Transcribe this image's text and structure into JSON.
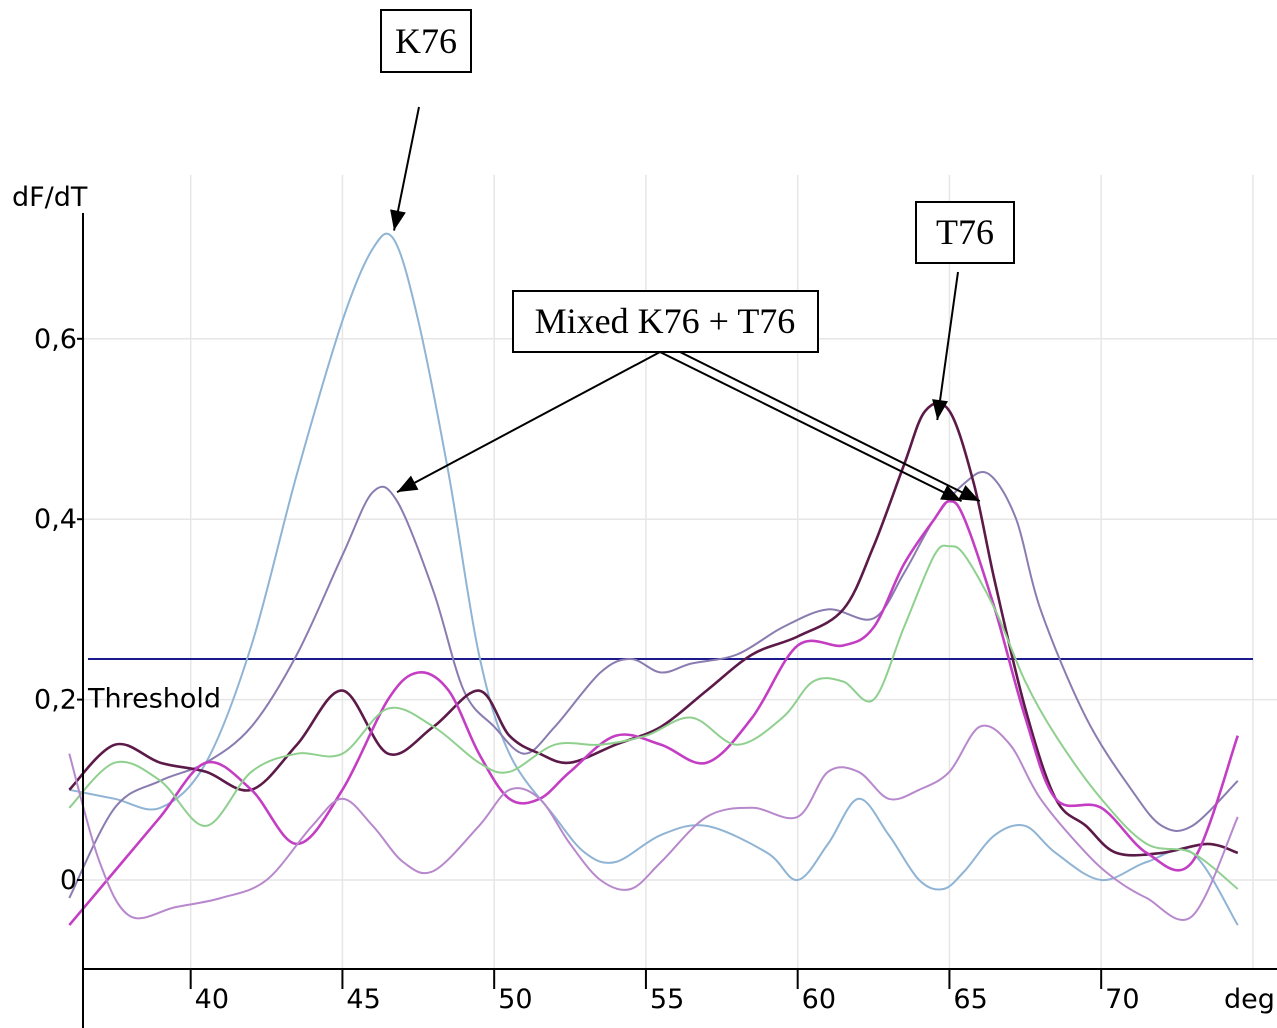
{
  "chart_data": {
    "type": "line",
    "ylabel": "dF/dT",
    "xlabel": "deg.",
    "xlim": [
      35.2,
      75.0
    ],
    "ylim": [
      -0.1,
      0.72
    ],
    "x_ticks": [
      40,
      45,
      50,
      55,
      60,
      65,
      70
    ],
    "x_tick_labels": [
      "40",
      "45",
      "50",
      "55",
      "60",
      "65",
      "70"
    ],
    "y_ticks": [
      0,
      0.2,
      0.4,
      0.6
    ],
    "y_tick_labels": [
      "0",
      "0,2",
      "0,4",
      "0,6"
    ],
    "grid": true,
    "threshold": {
      "label": "Threshold",
      "value": 0.245,
      "color": "#1a1a8c"
    },
    "series": [
      {
        "color": "#8fb4d4",
        "x": [
          36.0,
          37.5,
          39.0,
          40.5,
          42.0,
          43.5,
          45.0,
          46.0,
          46.7,
          47.5,
          48.5,
          49.5,
          50.5,
          52.0,
          53.0,
          54.0,
          55.5,
          57.0,
          59.0,
          60.0,
          61.0,
          62.0,
          63.0,
          64.0,
          64.8,
          65.5,
          66.5,
          67.5,
          68.5,
          70.0,
          71.5,
          73.0,
          74.5
        ],
        "values": [
          0.1,
          0.09,
          0.08,
          0.13,
          0.26,
          0.45,
          0.62,
          0.7,
          0.71,
          0.62,
          0.45,
          0.25,
          0.14,
          0.07,
          0.03,
          0.02,
          0.05,
          0.06,
          0.03,
          0.0,
          0.04,
          0.09,
          0.05,
          0.0,
          -0.01,
          0.01,
          0.05,
          0.06,
          0.03,
          0.0,
          0.02,
          0.03,
          -0.05
        ]
      },
      {
        "color": "#8a7cb0",
        "x": [
          36.0,
          37.5,
          39.0,
          40.5,
          42.0,
          43.5,
          45.0,
          46.0,
          46.8,
          48.0,
          49.0,
          50.0,
          51.0,
          52.0,
          53.5,
          54.5,
          55.5,
          56.5,
          58.0,
          59.5,
          61.0,
          62.5,
          63.5,
          64.5,
          65.5,
          66.3,
          67.2,
          68.0,
          69.5,
          71.0,
          72.0,
          73.0,
          74.5
        ],
        "values": [
          -0.02,
          0.08,
          0.11,
          0.13,
          0.17,
          0.25,
          0.36,
          0.43,
          0.42,
          0.32,
          0.21,
          0.17,
          0.14,
          0.17,
          0.23,
          0.245,
          0.23,
          0.24,
          0.25,
          0.28,
          0.3,
          0.29,
          0.34,
          0.4,
          0.44,
          0.45,
          0.4,
          0.3,
          0.18,
          0.1,
          0.06,
          0.06,
          0.11
        ]
      },
      {
        "color": "#5c1a48",
        "x": [
          36.0,
          37.5,
          39.0,
          40.5,
          42.0,
          43.5,
          45.0,
          46.5,
          48.0,
          49.5,
          50.5,
          51.5,
          52.5,
          54.0,
          55.5,
          57.0,
          58.5,
          60.0,
          61.5,
          62.5,
          63.5,
          64.2,
          65.0,
          65.8,
          66.5,
          67.5,
          68.5,
          69.5,
          70.5,
          72.0,
          73.5,
          74.5
        ],
        "values": [
          0.1,
          0.15,
          0.13,
          0.12,
          0.1,
          0.15,
          0.21,
          0.14,
          0.17,
          0.21,
          0.16,
          0.14,
          0.13,
          0.15,
          0.17,
          0.21,
          0.25,
          0.27,
          0.3,
          0.37,
          0.46,
          0.52,
          0.52,
          0.44,
          0.33,
          0.19,
          0.09,
          0.06,
          0.03,
          0.03,
          0.04,
          0.03
        ]
      },
      {
        "color": "#c43ec4",
        "x": [
          36.0,
          37.5,
          39.0,
          40.5,
          42.0,
          43.5,
          45.0,
          46.5,
          47.5,
          48.5,
          49.5,
          50.5,
          51.5,
          52.5,
          54.0,
          55.5,
          57.0,
          58.5,
          60.0,
          61.5,
          62.5,
          63.5,
          64.5,
          65.0,
          65.5,
          66.5,
          67.5,
          68.5,
          70.0,
          71.5,
          73.0,
          74.5
        ],
        "values": [
          -0.05,
          0.01,
          0.07,
          0.13,
          0.1,
          0.04,
          0.1,
          0.2,
          0.23,
          0.21,
          0.14,
          0.09,
          0.09,
          0.12,
          0.16,
          0.15,
          0.13,
          0.18,
          0.26,
          0.26,
          0.28,
          0.35,
          0.4,
          0.42,
          0.4,
          0.3,
          0.18,
          0.09,
          0.08,
          0.03,
          0.02,
          0.16
        ]
      },
      {
        "color": "#8fd08f",
        "x": [
          36.0,
          37.5,
          39.0,
          40.5,
          42.0,
          43.5,
          45.0,
          46.5,
          48.0,
          49.5,
          50.5,
          52.0,
          53.5,
          55.0,
          56.5,
          58.0,
          59.5,
          60.5,
          61.5,
          62.5,
          63.5,
          64.5,
          65.0,
          65.5,
          66.5,
          67.5,
          68.5,
          70.0,
          71.5,
          73.0,
          74.5
        ],
        "values": [
          0.08,
          0.13,
          0.11,
          0.06,
          0.12,
          0.14,
          0.14,
          0.19,
          0.17,
          0.13,
          0.12,
          0.15,
          0.15,
          0.16,
          0.18,
          0.15,
          0.18,
          0.22,
          0.22,
          0.2,
          0.28,
          0.36,
          0.37,
          0.36,
          0.3,
          0.22,
          0.16,
          0.09,
          0.04,
          0.03,
          -0.01
        ]
      },
      {
        "color": "#b888cc",
        "x": [
          36.0,
          37.0,
          38.0,
          39.5,
          41.0,
          42.5,
          44.0,
          45.0,
          46.0,
          47.0,
          48.0,
          49.5,
          50.5,
          51.5,
          52.5,
          53.5,
          54.5,
          55.5,
          57.0,
          58.5,
          60.0,
          61.0,
          62.0,
          63.0,
          64.0,
          65.0,
          66.0,
          67.0,
          68.0,
          69.5,
          70.5,
          71.5,
          73.0,
          74.5
        ],
        "values": [
          0.14,
          0.02,
          -0.04,
          -0.03,
          -0.02,
          0.0,
          0.06,
          0.09,
          0.06,
          0.02,
          0.01,
          0.06,
          0.1,
          0.09,
          0.04,
          0.0,
          -0.01,
          0.02,
          0.07,
          0.08,
          0.07,
          0.12,
          0.12,
          0.09,
          0.1,
          0.12,
          0.17,
          0.15,
          0.09,
          0.03,
          0.0,
          -0.02,
          -0.04,
          0.07
        ]
      }
    ],
    "annotations": [
      {
        "text": "K76",
        "points_to": [
          46.7,
          0.72
        ]
      },
      {
        "text": "T76",
        "points_to": [
          64.6,
          0.51
        ]
      },
      {
        "text": "Mixed K76 + T76",
        "points_to": [
          [
            46.8,
            0.43
          ],
          [
            65.4,
            0.42
          ],
          [
            66.0,
            0.42
          ]
        ]
      }
    ]
  }
}
